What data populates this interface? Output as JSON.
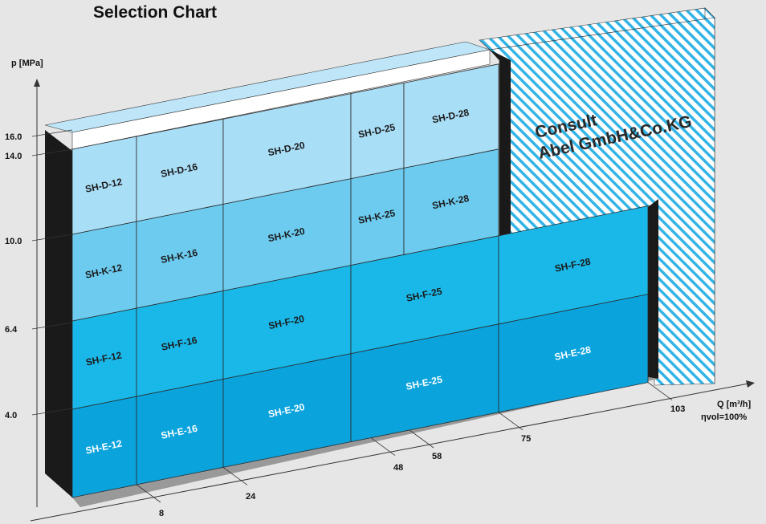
{
  "title": "Selection Chart",
  "chart_data": {
    "type": "heatmap",
    "title": "Selection Chart",
    "ylabel": "p [MPa]",
    "xlabel_unit": "Q [m³/h]",
    "efficiency_note": "ηvol=100%",
    "y_ticks": [
      "4.0",
      "6.4",
      "10.0",
      "14.0",
      "16.0"
    ],
    "x_ticks": [
      "8",
      "24",
      "48",
      "58",
      "75",
      "103"
    ],
    "columns": [
      {
        "q_max": 8,
        "cells": [
          {
            "series": "SH-E-12",
            "p_max": 4.0
          },
          {
            "series": "SH-F-12",
            "p_max": 6.4
          },
          {
            "series": "SH-K-12",
            "p_max": 10.0
          },
          {
            "series": "SH-D-12",
            "p_max": 14.0
          }
        ]
      },
      {
        "q_max": 24,
        "cells": [
          {
            "series": "SH-E-16",
            "p_max": 4.0
          },
          {
            "series": "SH-F-16",
            "p_max": 6.4
          },
          {
            "series": "SH-K-16",
            "p_max": 10.0
          },
          {
            "series": "SH-D-16",
            "p_max": 14.0
          }
        ]
      },
      {
        "q_max": 48,
        "cells": [
          {
            "series": "SH-E-20",
            "p_max": 4.0
          },
          {
            "series": "SH-F-20",
            "p_max": 6.4
          },
          {
            "series": "SH-K-20",
            "p_max": 10.0
          },
          {
            "series": "SH-D-20",
            "p_max": 14.0
          }
        ]
      },
      {
        "q_max": 58,
        "cells": [
          {
            "series": "SH-K-25",
            "p_max": 10.0
          },
          {
            "series": "SH-D-25",
            "p_max": 14.0
          }
        ]
      },
      {
        "q_max": 58,
        "cells": [
          {
            "series": "SH-E-25",
            "p_max": 4.0
          },
          {
            "series": "SH-F-25",
            "p_max": 6.4
          }
        ]
      },
      {
        "q_max": 75,
        "cells": [
          {
            "series": "SH-K-28",
            "p_max": 10.0
          },
          {
            "series": "SH-D-28",
            "p_max": 14.0
          }
        ]
      },
      {
        "q_max": 103,
        "cells": [
          {
            "series": "SH-E-28",
            "p_max": 4.0
          },
          {
            "series": "SH-F-28",
            "p_max": 6.4
          }
        ]
      }
    ],
    "colors": {
      "E": "#0aa3dc",
      "F": "#1ab8e8",
      "K": "#6ccbef",
      "D": "#a9def7",
      "hatch": "#33b4e6",
      "shadow": "#1a1a1a"
    }
  },
  "brand": {
    "line1": "Consult",
    "line2": "Abel GmbH&Co.KG"
  }
}
